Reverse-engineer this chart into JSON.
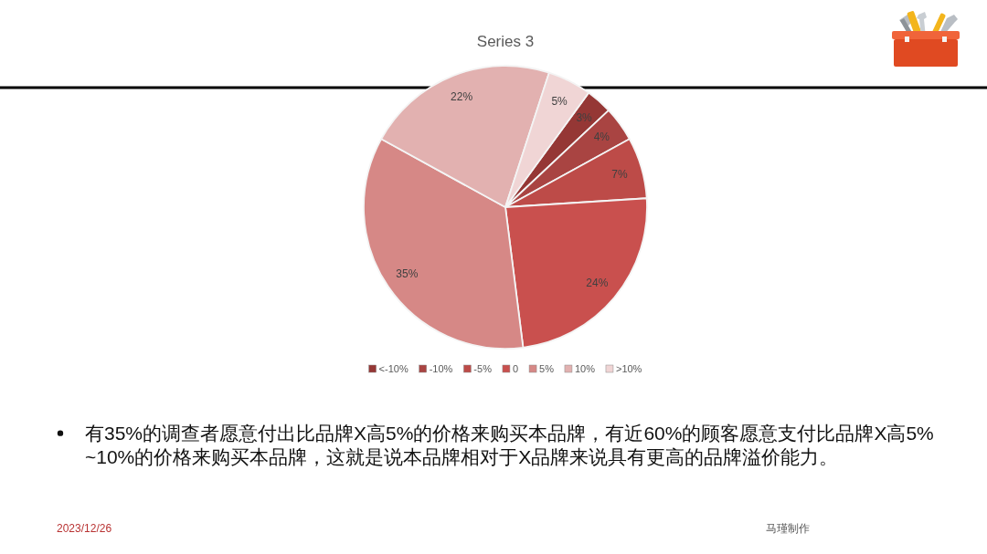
{
  "chart_data": {
    "type": "pie",
    "title": "Series 3",
    "categories": [
      "<-10%",
      "-10%",
      "-5%",
      "0",
      "5%",
      "10%",
      ">10%"
    ],
    "values": [
      3,
      4,
      7,
      24,
      35,
      22,
      5
    ],
    "colors": [
      "#953735",
      "#a94442",
      "#bd4b48",
      "#c9504e",
      "#d68886",
      "#e2b1b0",
      "#f0d5d5"
    ],
    "value_labels": [
      "3%",
      "4%",
      "7%",
      "24%",
      "35%",
      "22%",
      "5%"
    ],
    "legend": "bottom",
    "annotations": [
      "有35%的调查者愿意付出比品牌X高5%的价格来购买本品牌，有近60%的顾客愿意支付比品牌X高5%~10%的价格来购买本品牌，这就是说本品牌相对于X品牌来说具有更高的品牌溢价能力。",
      "2023/12/26",
      "马瑾制作"
    ]
  }
}
